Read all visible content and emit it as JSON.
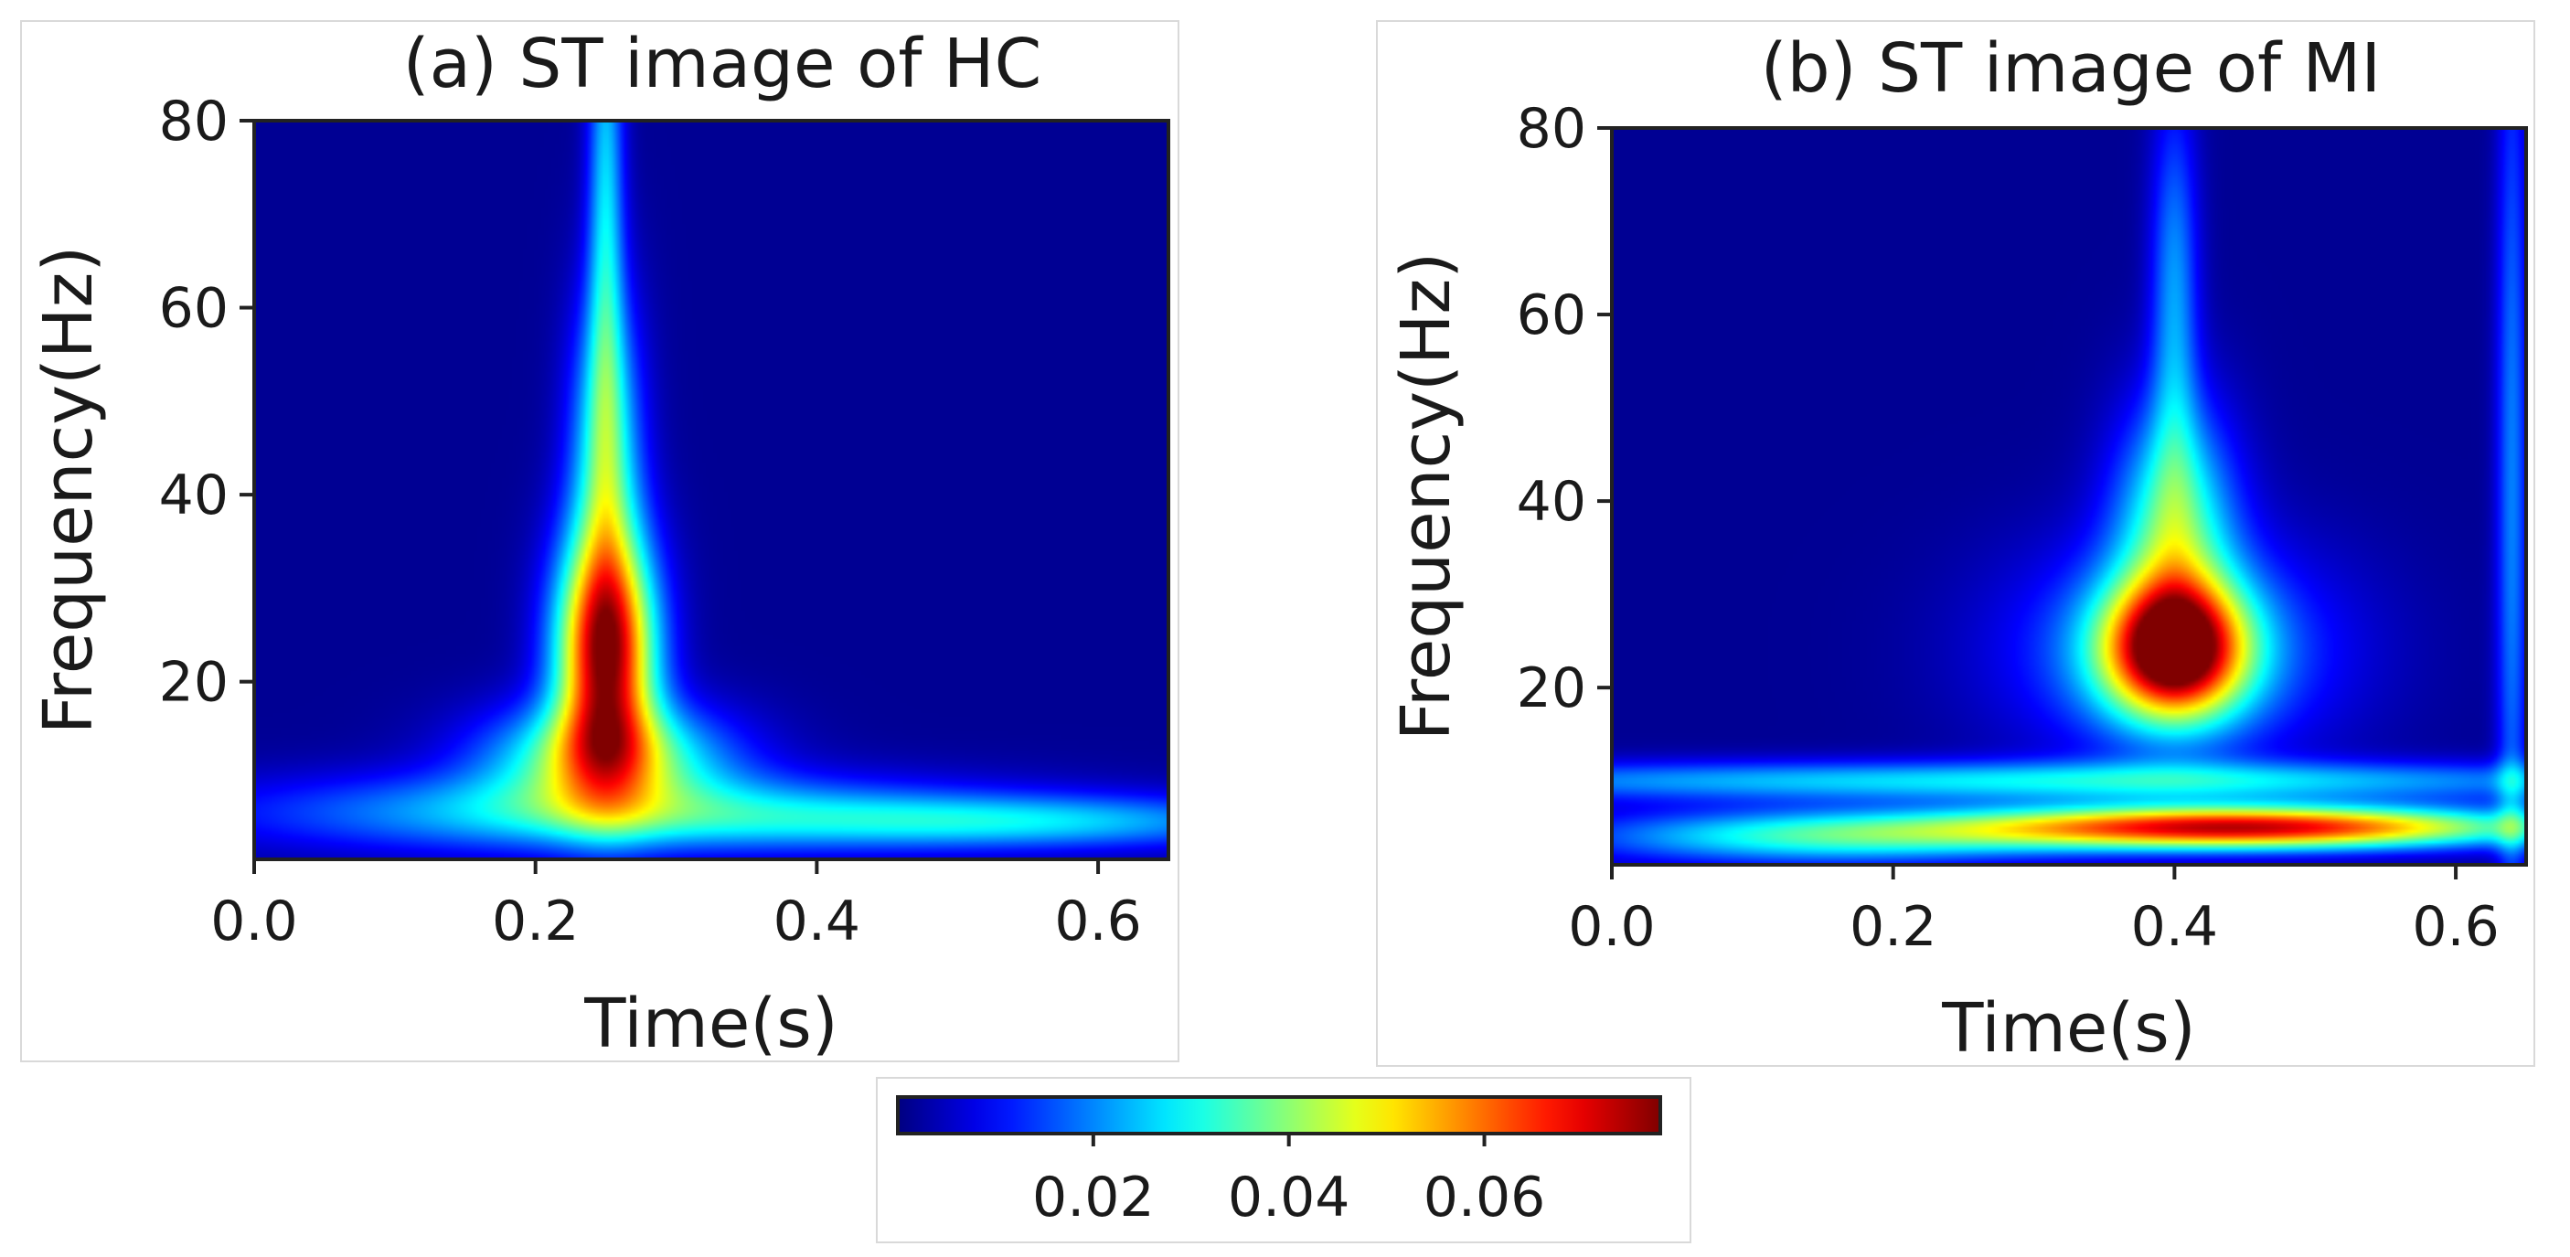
{
  "chart_data": [
    {
      "type": "heatmap",
      "title": "(a) ST image of HC",
      "xlabel": "Time(s)",
      "ylabel": "Frequency(Hz)",
      "xlim": [
        0,
        0.65
      ],
      "ylim": [
        1,
        80
      ],
      "x_ticks": [
        0.0,
        0.2,
        0.4,
        0.6
      ],
      "x_tick_labels": [
        "0.0",
        "0.2",
        "0.4",
        "0.6"
      ],
      "y_ticks": [
        20,
        40,
        60,
        80
      ],
      "y_tick_labels": [
        "20",
        "40",
        "60",
        "80"
      ],
      "colormap": "jet",
      "grid": false,
      "blobs": [
        {
          "t": 0.25,
          "f": 23,
          "amp": 0.073,
          "st": 0.025,
          "sf": 9
        },
        {
          "t": 0.25,
          "f": 12,
          "amp": 0.038,
          "st": 0.06,
          "sf": 4
        },
        {
          "t": 0.25,
          "f": 45,
          "amp": 0.03,
          "st": 0.018,
          "sf": 12
        },
        {
          "t": 0.25,
          "f": 72,
          "amp": 0.024,
          "st": 0.009,
          "sf": 20
        },
        {
          "t": 0.25,
          "f": 6,
          "amp": 0.026,
          "st": 0.18,
          "sf": 3
        },
        {
          "t": 0.55,
          "f": 5,
          "amp": 0.022,
          "st": 0.14,
          "sf": 2
        }
      ]
    },
    {
      "type": "heatmap",
      "title": "(b) ST image of MI",
      "xlabel": "Time(s)",
      "ylabel": "Frequency(Hz)",
      "xlim": [
        0,
        0.65
      ],
      "ylim": [
        1,
        80
      ],
      "x_ticks": [
        0.0,
        0.2,
        0.4,
        0.6
      ],
      "x_tick_labels": [
        "0.0",
        "0.2",
        "0.4",
        "0.6"
      ],
      "y_ticks": [
        20,
        40,
        60,
        80
      ],
      "y_tick_labels": [
        "20",
        "40",
        "60",
        "80"
      ],
      "colormap": "jet",
      "grid": false,
      "blobs": [
        {
          "t": 0.4,
          "f": 24,
          "amp": 0.068,
          "st": 0.035,
          "sf": 5
        },
        {
          "t": 0.4,
          "f": 24,
          "amp": 0.022,
          "st": 0.08,
          "sf": 8
        },
        {
          "t": 0.4,
          "f": 38,
          "amp": 0.032,
          "st": 0.03,
          "sf": 9
        },
        {
          "t": 0.4,
          "f": 62,
          "amp": 0.02,
          "st": 0.012,
          "sf": 15
        },
        {
          "t": 0.45,
          "f": 5,
          "amp": 0.07,
          "st": 0.14,
          "sf": 1.6
        },
        {
          "t": 0.15,
          "f": 4,
          "amp": 0.03,
          "st": 0.12,
          "sf": 2
        },
        {
          "t": 0.3,
          "f": 10,
          "amp": 0.026,
          "st": 0.35,
          "sf": 1.5
        },
        {
          "t": 0.64,
          "f": 40,
          "amp": 0.018,
          "st": 0.008,
          "sf": 40
        }
      ]
    }
  ],
  "colorbar": {
    "colormap": "jet",
    "range": [
      0,
      0.078
    ],
    "ticks": [
      0.02,
      0.04,
      0.06
    ],
    "tick_labels": [
      "0.02",
      "0.04",
      "0.06"
    ]
  }
}
